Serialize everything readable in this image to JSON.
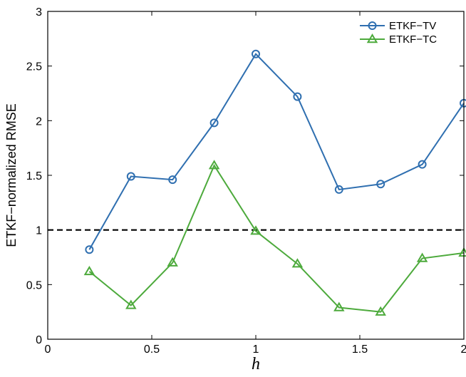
{
  "chart_data": {
    "type": "line",
    "xlabel": "h",
    "ylabel": "ETKF−normalized RMSE",
    "xlim": [
      0,
      2
    ],
    "ylim": [
      0,
      3
    ],
    "xticks": [
      "0",
      "0.5",
      "1",
      "1.5",
      "2"
    ],
    "yticks": [
      "0",
      "0.5",
      "1",
      "1.5",
      "2",
      "2.5",
      "3"
    ],
    "x": [
      0.2,
      0.4,
      0.6,
      0.8,
      1.0,
      1.2,
      1.4,
      1.6,
      1.8,
      2.0
    ],
    "series": [
      {
        "name": "ETKF−TV",
        "color": "#2f6fb0",
        "marker": "circle",
        "values": [
          0.82,
          1.49,
          1.46,
          1.98,
          2.61,
          2.22,
          1.37,
          1.42,
          1.6,
          2.16
        ]
      },
      {
        "name": "ETKF−TC",
        "color": "#4daa3c",
        "marker": "triangle",
        "values": [
          0.62,
          0.31,
          0.7,
          1.59,
          0.99,
          0.69,
          0.29,
          0.25,
          0.74,
          0.79
        ]
      }
    ],
    "reference_line": {
      "y": 1,
      "style": "dashed",
      "color": "#000000"
    },
    "legend_position": "top-right",
    "grid": false
  }
}
